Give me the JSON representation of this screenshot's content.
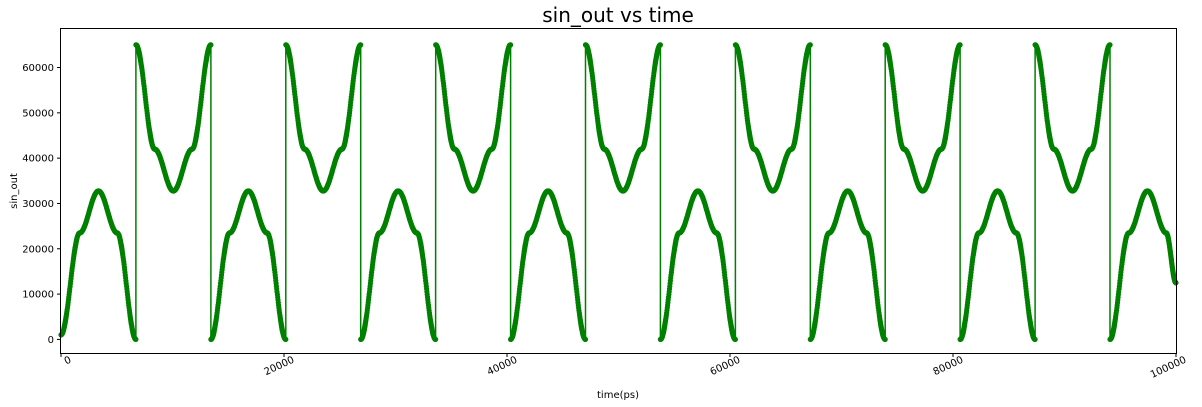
{
  "chart_data": {
    "type": "line",
    "title": "sin_out vs time",
    "xlabel": "time(ps)",
    "ylabel": "sin_out",
    "xlim": [
      0,
      100000
    ],
    "ylim": [
      -3000,
      68500
    ],
    "x_ticks": [
      0,
      20000,
      40000,
      60000,
      80000,
      100000
    ],
    "x_tick_labels": [
      "0",
      "20000",
      "40000",
      "60000",
      "80000",
      "100000"
    ],
    "x_tick_rotation_deg": -25,
    "y_ticks": [
      0,
      10000,
      20000,
      30000,
      40000,
      50000,
      60000
    ],
    "y_tick_labels": [
      "0",
      "10000",
      "20000",
      "30000",
      "40000",
      "50000",
      "60000"
    ],
    "grid": false,
    "legend": null,
    "series": [
      {
        "color": "#008000",
        "marker": "circle",
        "x": [
          0,
          1680,
          3360,
          5040,
          6720,
          6721,
          8400,
          10080,
          11760,
          13440,
          13441,
          15120,
          16800,
          18480,
          20160,
          20161,
          21840,
          23520,
          25200,
          26880,
          26881,
          28560,
          30240,
          31920,
          33600,
          33601,
          35280,
          36960,
          38640,
          40320,
          40321,
          42000,
          43680,
          45360,
          47040,
          47041,
          48720,
          50400,
          52080,
          53760,
          53761,
          55440,
          57120,
          58800,
          60480,
          60481,
          62160,
          63840,
          65520,
          67200,
          67201,
          68880,
          70560,
          72240,
          73920,
          73921,
          75600,
          77280,
          78960,
          80640,
          80641,
          82320,
          84000,
          85680,
          87360,
          87361,
          89040,
          90720,
          92400,
          94080,
          94081,
          95760,
          97440,
          99120,
          100000
        ],
        "y": [
          1000,
          23500,
          32760,
          23500,
          0,
          65000,
          42000,
          32760,
          42000,
          65000,
          0,
          23500,
          32760,
          23500,
          0,
          65000,
          42000,
          32760,
          42000,
          65000,
          0,
          23500,
          32760,
          23500,
          0,
          65000,
          42000,
          32760,
          42000,
          65000,
          0,
          23500,
          32760,
          23500,
          0,
          65000,
          42000,
          32760,
          42000,
          65000,
          0,
          23500,
          32760,
          23500,
          0,
          65000,
          42000,
          32760,
          42000,
          65000,
          0,
          23500,
          32760,
          23500,
          0,
          65000,
          42000,
          32760,
          42000,
          65000,
          0,
          23500,
          32760,
          23500,
          0,
          65000,
          42000,
          32760,
          42000,
          65000,
          0,
          23500,
          32760,
          23500,
          12500
        ]
      }
    ]
  }
}
